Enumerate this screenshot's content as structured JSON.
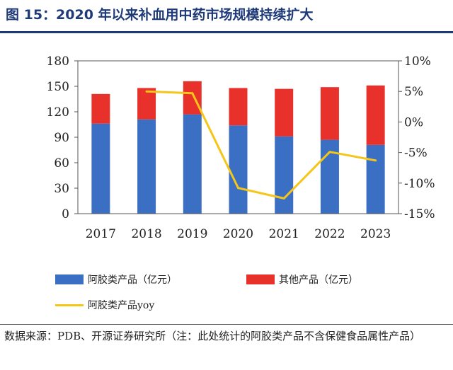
{
  "header": {
    "title": "图 15：2020 年以来补血用中药市场规模持续扩大"
  },
  "chart_data": {
    "type": "bar",
    "stacked": true,
    "categories": [
      "2017",
      "2018",
      "2019",
      "2020",
      "2021",
      "2022",
      "2023"
    ],
    "series": [
      {
        "name": "阿胶类产品（亿元）",
        "kind": "bar",
        "axis": "left",
        "color": "#3a6fc4",
        "values": [
          106,
          111,
          117,
          104,
          91,
          87,
          81
        ]
      },
      {
        "name": "其他产品（亿元）",
        "kind": "bar",
        "axis": "left",
        "color": "#e8312a",
        "values": [
          35,
          37,
          39,
          44,
          56,
          62,
          70
        ]
      },
      {
        "name": "阿胶类产品yoy",
        "kind": "line",
        "axis": "right",
        "color": "#f5c518",
        "values": [
          null,
          5.0,
          4.7,
          -10.8,
          -12.5,
          -4.9,
          -6.3
        ]
      }
    ],
    "left_axis": {
      "min": 0,
      "max": 180,
      "step": 30,
      "tick_labels": [
        "0",
        "30",
        "60",
        "90",
        "120",
        "150",
        "180"
      ]
    },
    "right_axis": {
      "min": -15,
      "max": 10,
      "step": 5,
      "tick_labels": [
        "-15%",
        "-10%",
        "-5%",
        "0%",
        "5%",
        "10%"
      ]
    },
    "grid": false,
    "legend_position": "bottom"
  },
  "footer": {
    "source": "数据来源：PDB、开源证券研究所（注：此处统计的阿胶类产品不含保健食品属性产品）"
  }
}
